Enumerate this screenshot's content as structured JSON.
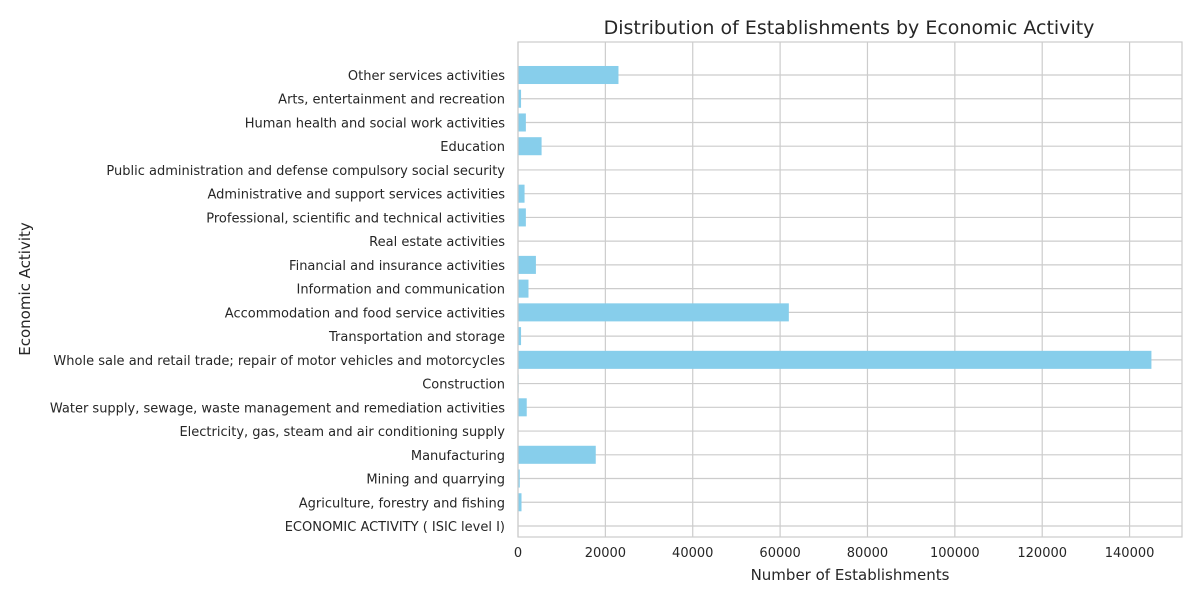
{
  "chart_data": {
    "type": "bar",
    "orientation": "horizontal",
    "title": "Distribution of Establishments by Economic Activity",
    "xlabel": "Number of Establishments",
    "ylabel": "Economic Activity",
    "xlim": [
      0,
      152000
    ],
    "xticks": [
      0,
      20000,
      40000,
      60000,
      80000,
      100000,
      120000,
      140000
    ],
    "grid": true,
    "bar_color": "#87CEEB",
    "categories": [
      "ECONOMIC ACTIVITY ( ISIC level I)",
      "Agriculture, forestry and fishing",
      "Mining and quarrying",
      "Manufacturing",
      "Electricity, gas, steam and air conditioning supply",
      "Water supply, sewage, waste management and remediation activities",
      "Construction",
      "Whole sale and retail trade; repair of motor vehicles and motorcycles",
      "Transportation and storage",
      "Accommodation and food service activities",
      "Information and communication",
      "Financial and insurance activities",
      "Real estate activities",
      "Professional, scientific and technical activities",
      "Administrative and support services activities",
      "Public administration and defense compulsory social security",
      "Education",
      "Human health and social work activities",
      "Arts, entertainment and recreation",
      "Other services activities"
    ],
    "values": [
      0,
      800,
      400,
      17800,
      100,
      2000,
      150,
      145000,
      700,
      62000,
      2400,
      4100,
      100,
      1800,
      1500,
      50,
      5400,
      1800,
      700,
      23000
    ]
  }
}
